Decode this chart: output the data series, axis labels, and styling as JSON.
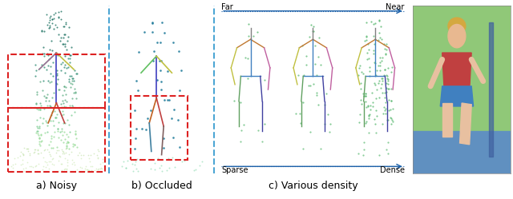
{
  "fig_width": 6.4,
  "fig_height": 2.49,
  "dpi": 100,
  "bg_color": "#ffffff",
  "panel_labels": [
    "a) Noisy",
    "b) Occluded",
    "c) Various density"
  ],
  "panel_label_fontsize": 9,
  "far_near_label": [
    "Far",
    "Near"
  ],
  "sparse_dense_label": [
    "Sparse",
    "Dense"
  ],
  "arrow_color": "#1a5fa8",
  "separator_color": "#4da6d4",
  "red_dash_color": "#dd2222",
  "noisy_dots": {
    "colors_top": [
      "#1a6b5a",
      "#2e8b7a",
      "#3aaa8a"
    ],
    "colors_mid": [
      "#5aba8a",
      "#7acc9a",
      "#9adda0"
    ],
    "colors_bot": [
      "#c0e8b0",
      "#d8f0c0",
      "#e8f8d0"
    ],
    "dot_size": 1.5
  },
  "occluded_dots": {
    "color_top": "#1a6b8a",
    "color_bot": "#8adab0",
    "dot_size": 2.0
  },
  "panel1_xlim": [
    0,
    1
  ],
  "panel1_ylim": [
    0,
    1
  ],
  "panel2_xlim": [
    0,
    1
  ],
  "panel2_ylim": [
    0,
    1
  ],
  "panel3_xlim": [
    0,
    1
  ],
  "panel3_ylim": [
    0,
    1
  ]
}
